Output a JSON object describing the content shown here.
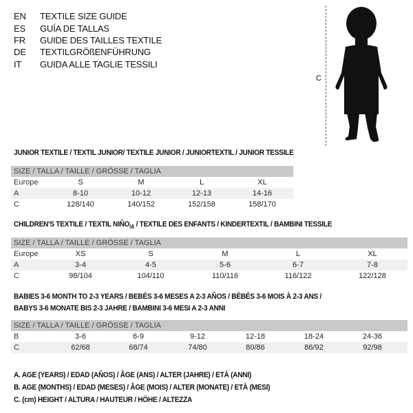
{
  "languages": [
    {
      "code": "EN",
      "text": "TEXTILE SIZE GUIDE"
    },
    {
      "code": "ES",
      "text": "GUÍA DE TALLAS"
    },
    {
      "code": "FR",
      "text": "GUIDE DES TAILLES TEXTILE"
    },
    {
      "code": "DE",
      "text": "TEXTILGRÖßENFÜHRUNG"
    },
    {
      "code": "IT",
      "text": "GUIDA ALLE TAGLIE TESSILI"
    }
  ],
  "figure": {
    "measure_label": "C",
    "icon": "baby-silhouette"
  },
  "junior": {
    "title": "JUNIOR TEXTILE / TEXTIL JUNIOR/ TEXTILE JUNIOR / JUNIORTEXTIL / JUNIOR TESSILE",
    "header": "SIZE / TALLA / TAILLE / GRÖSSE / TAGLIA",
    "rows": [
      {
        "label": "Europe",
        "values": [
          "S",
          "M",
          "L",
          "XL"
        ]
      },
      {
        "label": "A",
        "values": [
          "8-10",
          "10-12",
          "12-13",
          "14-16"
        ]
      },
      {
        "label": "C",
        "values": [
          "128/140",
          "140/152",
          "152/158",
          "158/170"
        ]
      }
    ]
  },
  "children": {
    "title": "CHILDREN'S TEXTILE / TEXTIL NIÑO",
    "title_sub": "/A",
    "title_rest": " / TEXTILE DES ENFANTS / KINDERTEXTIL / BAMBINI TESSILE",
    "header": "SIZE / TALLA / TAILLE / GRÖSSE / TAGLIA",
    "rows": [
      {
        "label": "Europe",
        "values": [
          "XS",
          "S",
          "M",
          "L",
          "XL"
        ]
      },
      {
        "label": "A",
        "values": [
          "3-4",
          "4-5",
          "5-6",
          "6-7",
          "7-8"
        ]
      },
      {
        "label": "C",
        "values": [
          "98/104",
          "104/110",
          "110/116",
          "116/122",
          "122/128"
        ]
      }
    ]
  },
  "babies": {
    "title_line1": "BABIES 3-6 MONTH TO 2-3 YEARS / BEBÉS 3-6 MESES A 2-3 AÑOS / BÉBÉS 3-6 MOIS À 2-3 ANS /",
    "title_line2": "BABYS 3-6 MONATE BIS 2-3 JAHRE / BAMBINI 3-6 MESI A 2-3 ANNI",
    "header": "SIZE / TALLA / TAILLE / GRÖSSE / TAGLIA",
    "rows": [
      {
        "label": "B",
        "values": [
          "3-6",
          "6-9",
          "9-12",
          "12-18",
          "18-24",
          "24-36"
        ]
      },
      {
        "label": "C",
        "values": [
          "62/68",
          "68/74",
          "74/80",
          "80/86",
          "86/92",
          "92/98"
        ]
      }
    ]
  },
  "legend": [
    "A. AGE (YEARS) / EDAD (AÑOS) / ÂGE (ANS) / ALTER (JAHRE) / ETÀ (ANNI)",
    "B. AGE (MONTHS) / EDAD (MESES) / ÂGE (MOIS) / ALTER (MONATE) / ETÀ (MESI)",
    "C. (cm) HEIGHT / ALTURA / HAUTEUR / HÖHE / ALTEZZA"
  ]
}
